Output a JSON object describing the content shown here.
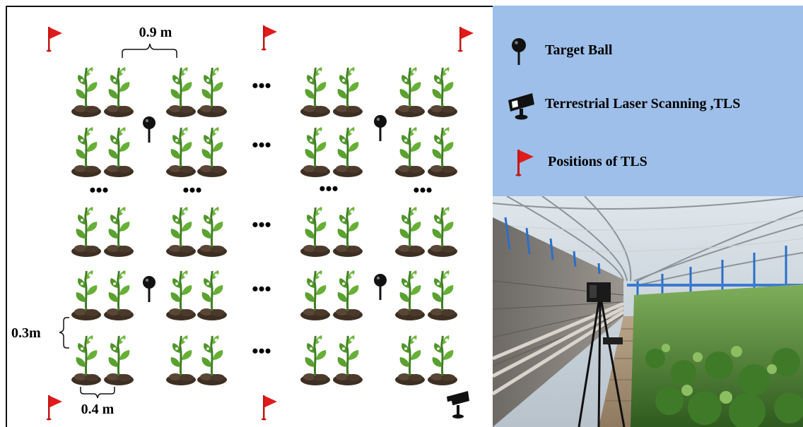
{
  "diagram": {
    "spacing_row_label": "0.9 m",
    "spacing_plant_label": "0.3m",
    "spacing_pair_label": "0.4 m",
    "ellipsis": "•••"
  },
  "legend": {
    "items": [
      {
        "icon": "target-ball-icon",
        "label": "Target Ball"
      },
      {
        "icon": "tls-scanner-icon",
        "label": "Terrestrial Laser Scanning ,TLS"
      },
      {
        "icon": "flag-icon",
        "label": "Positions of  TLS"
      }
    ]
  },
  "colors": {
    "legend_bg": "#9dbfe9",
    "flag_red": "#e11b1b",
    "leaf_green": "#5a9e2f",
    "soil_brown": "#4a3a2a"
  }
}
